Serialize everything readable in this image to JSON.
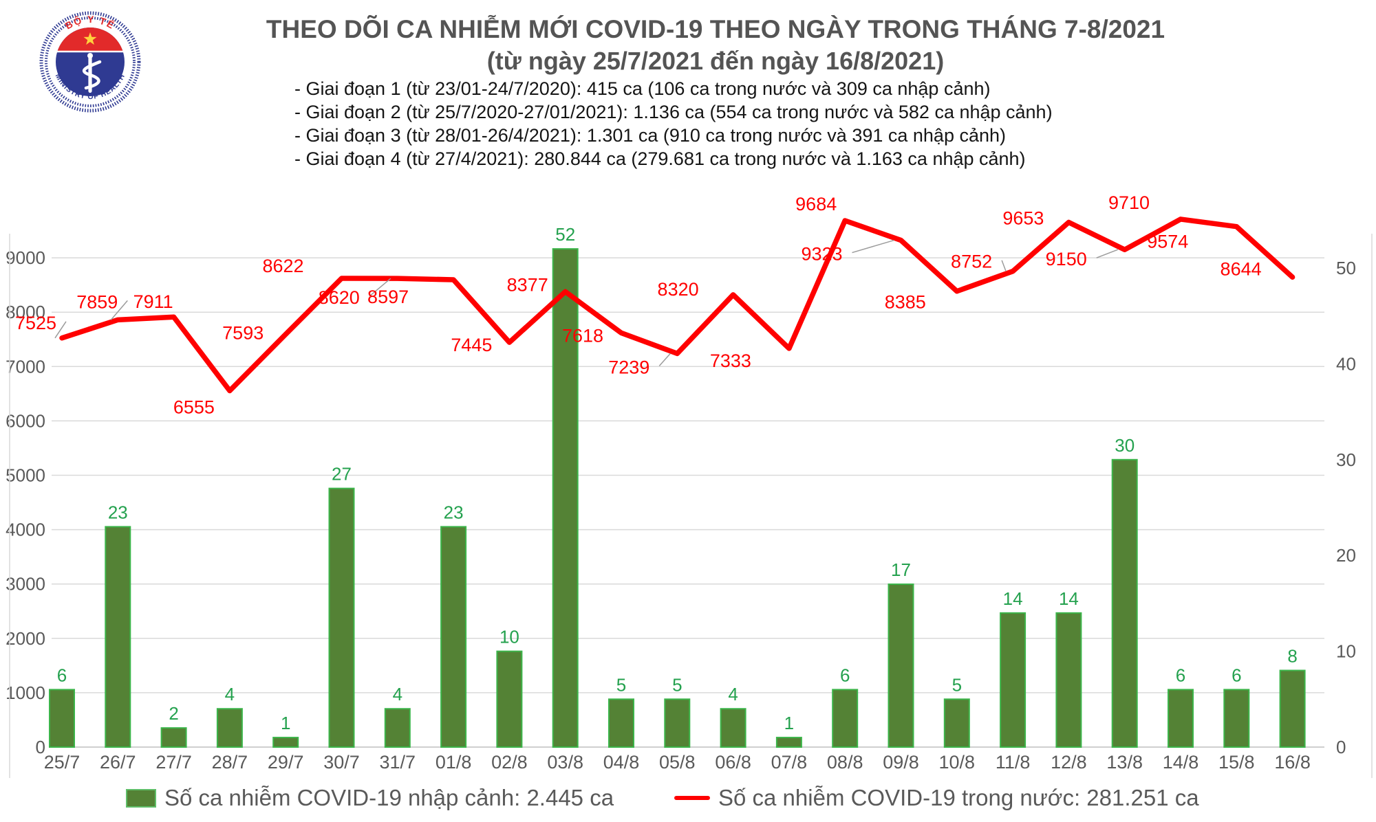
{
  "logo": {
    "top_text": "BỘ Y TẾ",
    "bottom_text": "MINISTRY OF HEALTH"
  },
  "header": {
    "title_line1": "THEO DÕI CA NHIỄM MỚI COVID-19 THEO NGÀY TRONG THÁNG 7-8/2021",
    "title_line2": "(từ ngày 25/7/2021 đến ngày 16/8/2021)",
    "bullets": [
      "- Giai đoạn 1 (từ 23/01-24/7/2020): 415 ca (106 ca trong nước và 309 ca nhập cảnh)",
      "- Giai đoạn 2 (từ 25/7/2020-27/01/2021): 1.136 ca (554 ca trong nước và 582 ca nhập cảnh)",
      "- Giai đoạn 3 (từ 28/01-26/4/2021): 1.301 ca (910 ca trong nước và 391 ca nhập cảnh)",
      "- Giai đoạn 4 (từ 27/4/2021): 280.844 ca (279.681 ca trong nước và 1.163 ca nhập cảnh)"
    ]
  },
  "chart_data": {
    "type": "combo",
    "title": "THEO DÕI CA NHIỄM MỚI COVID-19 THEO NGÀY TRONG THÁNG 7-8/2021 (từ ngày 25/7/2021 đến ngày 16/8/2021)",
    "categories": [
      "25/7",
      "26/7",
      "27/7",
      "28/7",
      "29/7",
      "30/7",
      "31/7",
      "01/8",
      "02/8",
      "03/8",
      "04/8",
      "05/8",
      "06/8",
      "07/8",
      "08/8",
      "09/8",
      "10/8",
      "11/8",
      "12/8",
      "13/8",
      "14/8",
      "15/8",
      "16/8"
    ],
    "series": [
      {
        "name": "Số ca nhiễm COVID-19 nhập cảnh",
        "type": "bar",
        "axis": "right",
        "values": [
          6,
          23,
          2,
          4,
          1,
          27,
          4,
          23,
          10,
          52,
          5,
          5,
          4,
          1,
          6,
          17,
          5,
          14,
          14,
          30,
          6,
          6,
          8
        ]
      },
      {
        "name": "Số ca nhiễm COVID-19 trong nước",
        "type": "line",
        "axis": "left",
        "values": [
          7525,
          7859,
          7911,
          6555,
          7593,
          8622,
          8620,
          8597,
          7445,
          8377,
          7618,
          7239,
          8320,
          7333,
          9684,
          9323,
          8385,
          8752,
          9653,
          9150,
          9710,
          9574,
          8644
        ]
      }
    ],
    "left_axis": {
      "min": 0,
      "max": 9000,
      "step": 1000
    },
    "right_axis": {
      "min": 0,
      "max": 50,
      "step": 10
    },
    "grid": "horizontal",
    "legend_position": "bottom"
  },
  "legend": [
    {
      "swatch": "bar",
      "label": "Số ca nhiễm COVID-19 nhập cảnh: 2.445 ca"
    },
    {
      "swatch": "line",
      "label": "Số ca nhiễm COVID-19 trong nước: 281.251 ca"
    }
  ],
  "colors": {
    "bar_fill": "#548235",
    "bar_edge": "#3CB54A",
    "bar_label": "#24A14E",
    "line": "#FF0000",
    "line_label": "#FF0000",
    "grid": "#D9D9D9",
    "axis_line": "#BFBFBF",
    "axis_text": "#595959",
    "title_text": "#545454",
    "body_text": "#151515",
    "leader": "#9B9B9B",
    "logo_red": "#E22A2A",
    "logo_blue": "#2F3A92",
    "logo_star": "#FFD23E"
  }
}
